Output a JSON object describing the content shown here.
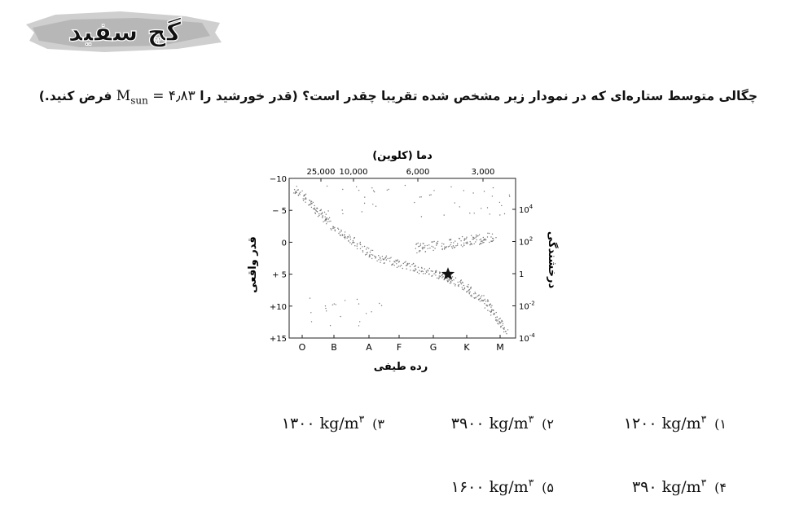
{
  "logo": {
    "text": "گچ سفید"
  },
  "question": {
    "main": "چگالی متوسط ستاره‌ای که در نمودار زیر مشخص شده تقریبا چقدر است؟ (قدر خورشید را",
    "math_symbol": "M",
    "math_sub": "sun",
    "math_rest": "= ۴٫۸۳",
    "tail": "فرض کنید.)"
  },
  "chart_data": {
    "type": "scatter",
    "title": "دما (کلوین)",
    "xlabel": "رده طیفی",
    "ylabel": "قدر واقعی",
    "ylabel_right": "درخشندگی",
    "categories": [
      "O",
      "B",
      "A",
      "F",
      "G",
      "K",
      "M"
    ],
    "top_ticks": [
      "25,000",
      "10,000",
      "6,000",
      "3,000"
    ],
    "left_ticks": [
      "−10",
      "− 5",
      "0",
      "+ 5",
      "+10",
      "+15"
    ],
    "right_ticks": [
      {
        "base": "10",
        "exp": "4"
      },
      {
        "base": "10",
        "exp": "2"
      },
      {
        "base": "1",
        "exp": ""
      },
      {
        "base": "10",
        "exp": "-2"
      },
      {
        "base": "10",
        "exp": "-4"
      }
    ],
    "ylim": [
      -10,
      15
    ],
    "marked_star": {
      "spectral": "G",
      "magnitude": 5
    }
  },
  "options": [
    {
      "num": "۱)",
      "value": "۱۲۰۰ kg/m",
      "exp": "۳"
    },
    {
      "num": "۲)",
      "value": "۳۹۰۰ kg/m",
      "exp": "۳"
    },
    {
      "num": "۳)",
      "value": "۱۳۰۰ kg/m",
      "exp": "۳"
    },
    {
      "num": "۴)",
      "value": "۳۹۰ kg/m",
      "exp": "۳"
    },
    {
      "num": "۵)",
      "value": "۱۶۰۰ kg/m",
      "exp": "۳"
    }
  ]
}
